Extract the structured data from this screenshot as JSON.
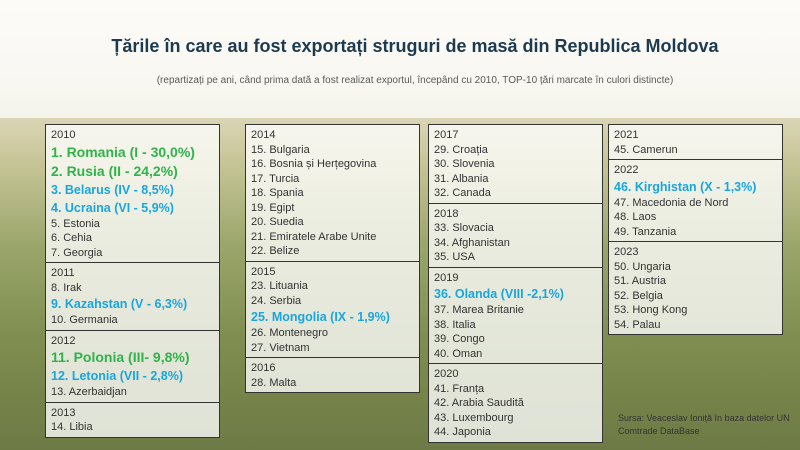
{
  "header": {
    "title": "Țările în care au fost exportați struguri de masă din Republica Moldova",
    "subtitle": "(repartizați pe ani, când prima dată a fost realizat exportul, începând cu 2010, TOP-10 țări marcate în culori distincte)"
  },
  "columns": [
    {
      "groups": [
        {
          "year": "2010",
          "items": [
            {
              "text": "1. Romania (I - 30,0%)",
              "color": "#2fb34a",
              "large": true
            },
            {
              "text": "2. Rusia (II - 24,2%)",
              "color": "#2fb34a",
              "large": true
            },
            {
              "text": "3. Belarus (IV - 8,5%)",
              "color": "#1aa6dc"
            },
            {
              "text": "4. Ucraina (VI - 5,9%)",
              "color": "#1aa6dc"
            },
            {
              "text": "5. Estonia"
            },
            {
              "text": "6. Cehia"
            },
            {
              "text": "7. Georgia"
            }
          ]
        },
        {
          "year": "2011",
          "items": [
            {
              "text": "8. Irak"
            },
            {
              "text": "9. Kazahstan (V - 6,3%)",
              "color": "#1aa6dc"
            },
            {
              "text": "10. Germania"
            }
          ]
        },
        {
          "year": "2012",
          "items": [
            {
              "text": "11. Polonia (III- 9,8%)",
              "color": "#2fb34a",
              "large": true
            },
            {
              "text": "12. Letonia (VII - 2,8%)",
              "color": "#1aa6dc"
            },
            {
              "text": "13. Azerbaidjan"
            }
          ]
        },
        {
          "year": "2013",
          "items": [
            {
              "text": "14. Libia"
            }
          ]
        }
      ]
    },
    {
      "groups": [
        {
          "year": "2014",
          "items": [
            {
              "text": "15. Bulgaria"
            },
            {
              "text": "16. Bosnia și Herțegovina"
            },
            {
              "text": "17. Turcia"
            },
            {
              "text": "18. Spania"
            },
            {
              "text": "19. Egipt"
            },
            {
              "text": "20. Suedia"
            },
            {
              "text": "21. Emiratele Arabe Unite"
            },
            {
              "text": "22. Belize"
            }
          ]
        },
        {
          "year": "2015",
          "items": [
            {
              "text": "23. Lituania"
            },
            {
              "text": "24. Serbia"
            },
            {
              "text": "25. Mongolia (IX - 1,9%)",
              "color": "#1aa6dc"
            },
            {
              "text": "26. Montenegro"
            },
            {
              "text": "27. Vietnam"
            }
          ]
        },
        {
          "year": "2016",
          "items": [
            {
              "text": "28. Malta"
            }
          ]
        }
      ]
    },
    {
      "groups": [
        {
          "year": "2017",
          "items": [
            {
              "text": "29. Croația"
            },
            {
              "text": "30. Slovenia"
            },
            {
              "text": "31. Albania"
            },
            {
              "text": "32. Canada"
            }
          ]
        },
        {
          "year": "2018",
          "items": [
            {
              "text": "33. Slovacia"
            },
            {
              "text": "34. Afghanistan"
            },
            {
              "text": "35. USA"
            }
          ]
        },
        {
          "year": "2019",
          "items": [
            {
              "text": "36. Olanda (VIII -2,1%)",
              "color": "#1aa6dc"
            },
            {
              "text": "37. Marea Britanie"
            },
            {
              "text": "38. Italia"
            },
            {
              "text": "39. Congo"
            },
            {
              "text": "40. Oman"
            }
          ]
        },
        {
          "year": "2020",
          "items": [
            {
              "text": "41. Franța"
            },
            {
              "text": "42. Arabia Saudită"
            },
            {
              "text": "43. Luxembourg"
            },
            {
              "text": "44. Japonia"
            }
          ]
        }
      ]
    },
    {
      "groups": [
        {
          "year": "2021",
          "items": [
            {
              "text": "45. Camerun"
            }
          ]
        },
        {
          "year": "2022",
          "items": [
            {
              "text": "46. Kirghistan (X - 1,3%)",
              "color": "#1aa6dc"
            },
            {
              "text": "47. Macedonia de Nord"
            },
            {
              "text": "48. Laos"
            },
            {
              "text": "49. Tanzania"
            }
          ]
        },
        {
          "year": "2023",
          "items": [
            {
              "text": "50. Ungaria"
            },
            {
              "text": "51. Austria"
            },
            {
              "text": "52. Belgia"
            },
            {
              "text": "53. Hong Kong"
            },
            {
              "text": "54. Palau"
            }
          ]
        }
      ]
    }
  ],
  "source": "Sursa: Veaceslav Ioniță în baza datelor UN Comtrade DataBase"
}
